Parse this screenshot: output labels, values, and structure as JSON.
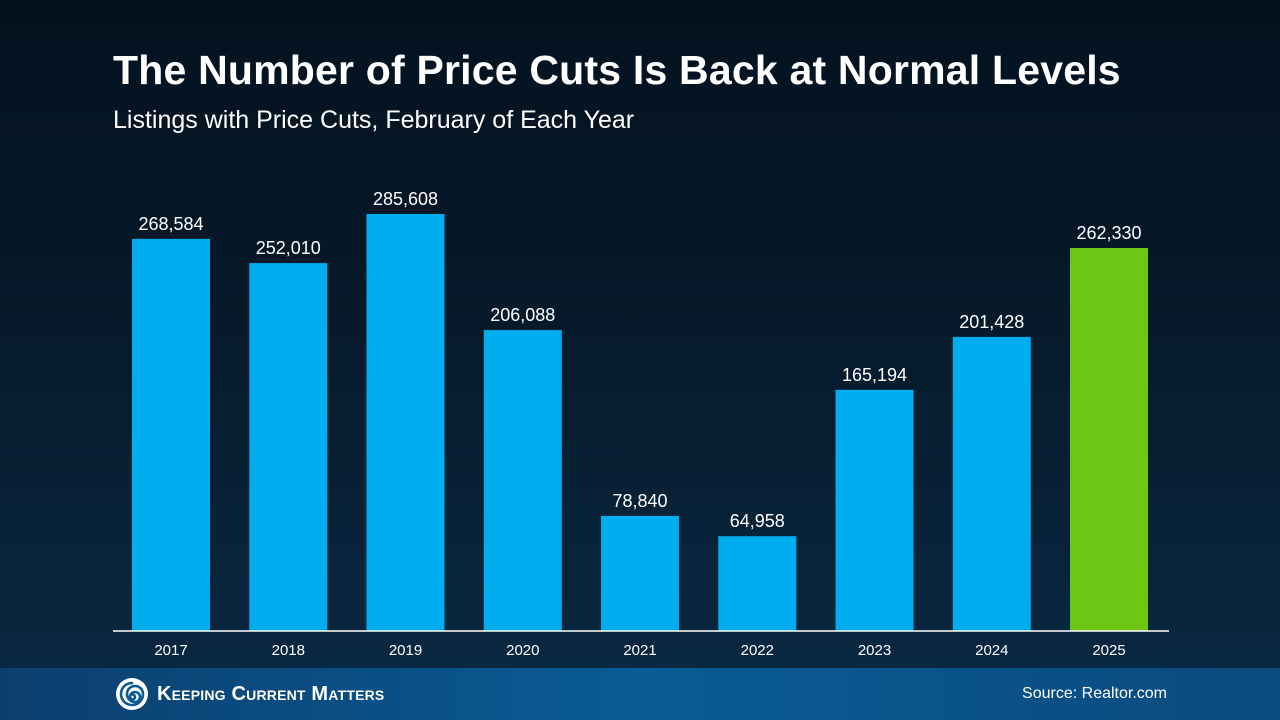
{
  "header": {
    "title": "The Number of Price Cuts Is Back at Normal Levels",
    "subtitle": "Listings with Price Cuts, February of Each Year"
  },
  "chart_data": {
    "type": "bar",
    "title": "The Number of Price Cuts Is Back at Normal Levels",
    "subtitle": "Listings with Price Cuts, February of Each Year",
    "categories": [
      "2017",
      "2018",
      "2019",
      "2020",
      "2021",
      "2022",
      "2023",
      "2024",
      "2025"
    ],
    "values": [
      268584,
      252010,
      285608,
      206088,
      78840,
      64958,
      165194,
      201428,
      262330
    ],
    "data_labels": [
      "268,584",
      "252,010",
      "285,608",
      "206,088",
      "78,840",
      "64,958",
      "165,194",
      "201,428",
      "262,330"
    ],
    "xlabel": "",
    "ylabel": "",
    "grid": false,
    "legend": "none",
    "colors": {
      "default": "#00aeef",
      "highlight": "#6cc614",
      "highlight_category": "2025",
      "axis": "#ffffff",
      "label": "#ffffff"
    }
  },
  "footer": {
    "logo_text": "Keeping Current Matters",
    "logo_icon": "spiral-logo-icon",
    "source": "Source: Realtor.com"
  }
}
